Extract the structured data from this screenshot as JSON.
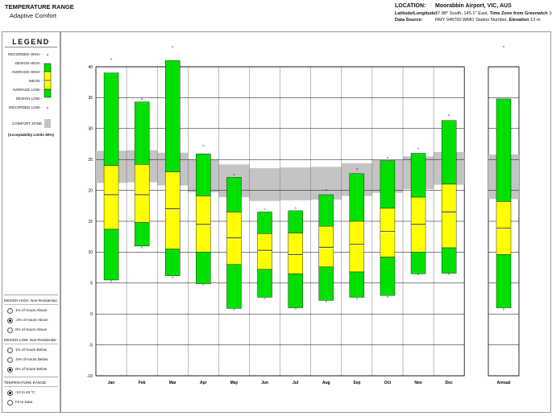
{
  "header": {
    "title": "TEMPERATURE RANGE",
    "subtitle": "Adaptive Comfort",
    "location_label": "LOCATION:",
    "location_value": "Moorabbin Airport, VIC, AUS",
    "latlon_label": "Latitude/Longitude:",
    "latlon_value": "37.98° South, 145.1° East,",
    "tz_label": "Time Zone from Greenwich",
    "tz_value": "10",
    "source_label": "Data Source:",
    "source_value": "RMY   948700 WMO Station Number,",
    "elev_label": "Elevation",
    "elev_value": "13 m"
  },
  "legend": {
    "title": "LEGEND",
    "recorded_high": "RECORDED HIGH -",
    "design_high": "DESIGN HIGH -",
    "average_high": "AVERAGE HIGH -",
    "mean": "MEAN -",
    "average_low": "AVERAGE LOW -",
    "design_low": "DESIGN LOW -",
    "recorded_low": "RECORDED LOW -",
    "comfort_zone": "COMFORT ZONE",
    "acceptability": "(Acceptability Limits 90%)"
  },
  "options": {
    "design_high_title": "DESIGN HIGH:  Non-Residential",
    "design_high": [
      "1% of Hours Above",
      ".2% of Hours Above",
      "0% of Hours Above"
    ],
    "design_high_selected": 1,
    "design_low_title": "DESIGN LOW:  Non-Residential",
    "design_low": [
      "1% of Hours Below",
      ".5% of Hours Below",
      "0% of Hours Below"
    ],
    "design_low_selected": 2,
    "range_title": "TEMPERATURE RANGE:",
    "range": [
      "-10 to 40 °C",
      "Fit to Data"
    ],
    "range_selected": 0
  },
  "colors": {
    "design": "#00e000",
    "average": "#ffff00",
    "comfort": "#c4c4c4",
    "grid": "#000000"
  },
  "chart_data": {
    "type": "box",
    "ylim": [
      -10,
      40
    ],
    "yticks": [
      -10,
      -5,
      0,
      5,
      10,
      15,
      20,
      25,
      30,
      35,
      40
    ],
    "months": [
      {
        "label": "Jan",
        "rec_high": 41,
        "design_high": 39,
        "avg_high": 24,
        "mean": 19.3,
        "avg_low": 13.7,
        "design_low": 5.5,
        "rec_low": 5.3,
        "comfort": [
          21.2,
          26.4
        ]
      },
      {
        "label": "Feb",
        "rec_high": 34.5,
        "design_high": 34.3,
        "avg_high": 24.2,
        "mean": 19.3,
        "avg_low": 14.8,
        "design_low": 11,
        "rec_low": 10.8,
        "comfort": [
          21.3,
          26.5
        ]
      },
      {
        "label": "Mar",
        "rec_high": 43,
        "design_high": 41,
        "avg_high": 23,
        "mean": 17,
        "avg_low": 10.5,
        "design_low": 6.2,
        "rec_low": 6,
        "comfort": [
          20.8,
          26.1
        ]
      },
      {
        "label": "Apr",
        "rec_high": 27,
        "design_high": 25.9,
        "avg_high": 19.1,
        "mean": 14.5,
        "avg_low": 10,
        "design_low": 4.9,
        "rec_low": 4.8,
        "comfort": [
          19.7,
          25
        ]
      },
      {
        "label": "May",
        "rec_high": 22.3,
        "design_high": 22.1,
        "avg_high": 16.5,
        "mean": 12.3,
        "avg_low": 8,
        "design_low": 0.9,
        "rec_low": 0.8,
        "comfort": [
          18.9,
          24.2
        ]
      },
      {
        "label": "Jun",
        "rec_high": 16.7,
        "design_high": 16.5,
        "avg_high": 13,
        "mean": 10.3,
        "avg_low": 7.2,
        "design_low": 2.7,
        "rec_low": 2.5,
        "comfort": [
          18.3,
          23.6
        ]
      },
      {
        "label": "Jul",
        "rec_high": 16.9,
        "design_high": 16.7,
        "avg_high": 13.1,
        "mean": 9.6,
        "avg_low": 6.5,
        "design_low": 1,
        "rec_low": 0.9,
        "comfort": [
          18.4,
          23.7
        ]
      },
      {
        "label": "Aug",
        "rec_high": 19.8,
        "design_high": 19.3,
        "avg_high": 14.2,
        "mean": 10.8,
        "avg_low": 7.6,
        "design_low": 2.2,
        "rec_low": 2.1,
        "comfort": [
          18.5,
          23.8
        ]
      },
      {
        "label": "Sep",
        "rec_high": 23.2,
        "design_high": 22.7,
        "avg_high": 15,
        "mean": 11.3,
        "avg_low": 6.8,
        "design_low": 2.7,
        "rec_low": 2.5,
        "comfort": [
          19.1,
          24.4
        ]
      },
      {
        "label": "Oct",
        "rec_high": 25,
        "design_high": 24.8,
        "avg_high": 17.1,
        "mean": 13.4,
        "avg_low": 9.2,
        "design_low": 3,
        "rec_low": 2.8,
        "comfort": [
          19.6,
          24.9
        ]
      },
      {
        "label": "Nov",
        "rec_high": 26.5,
        "design_high": 26,
        "avg_high": 18.9,
        "mean": 14.5,
        "avg_low": 10,
        "design_low": 6.5,
        "rec_low": 6.4,
        "comfort": [
          20.2,
          25.5
        ]
      },
      {
        "label": "Dec",
        "rec_high": 31.9,
        "design_high": 31.3,
        "avg_high": 21,
        "mean": 16.5,
        "avg_low": 10.7,
        "design_low": 6.6,
        "rec_low": 6.5,
        "comfort": [
          20.9,
          26.2
        ]
      },
      {
        "label": "Annual",
        "rec_high": 43,
        "design_high": 34.8,
        "avg_high": 18.2,
        "mean": 13.9,
        "avg_low": 9.6,
        "design_low": 1,
        "rec_low": 0.8,
        "comfort": [
          18.6,
          25.8
        ]
      }
    ]
  }
}
